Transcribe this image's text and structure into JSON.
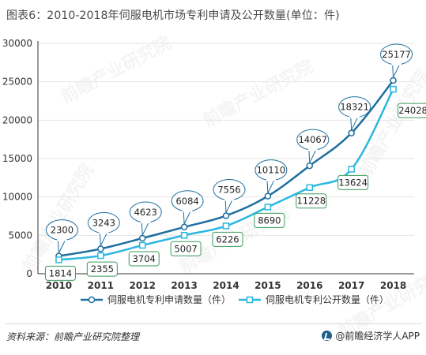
{
  "title": "图表6：2010-2018年伺服电机市场专利申请及公开数量(单位：件)",
  "source": "资料来源：前瞻产业研究院整理",
  "brand": "@前瞻经济学人APP",
  "watermark_text": "前瞻产业研究院",
  "colors": {
    "application": "#1f6f9f",
    "publication": "#2ab7e0",
    "bubble_border": "#1f6f9f",
    "box_border": "#3a9a5e",
    "axis": "#333333",
    "grid": "#e6e6e6"
  },
  "chart_data": {
    "type": "line",
    "categories": [
      "2010",
      "2011",
      "2012",
      "2013",
      "2014",
      "2015",
      "2016",
      "2017",
      "2018"
    ],
    "ylim": [
      0,
      30000
    ],
    "yticks": [
      "0",
      "5000",
      "10000",
      "15000",
      "20000",
      "25000",
      "30000"
    ],
    "ytick_values": [
      0,
      5000,
      10000,
      15000,
      20000,
      25000,
      30000
    ],
    "series": [
      {
        "name": "伺服电机专利申请数量（件）",
        "values": [
          2300,
          3243,
          4623,
          6084,
          7556,
          10110,
          14067,
          18321,
          25177
        ],
        "marker": "circle",
        "label_style": "bubble"
      },
      {
        "name": "伺服电机专利公开数量（件）",
        "values": [
          1814,
          2355,
          3704,
          5007,
          6226,
          8690,
          11228,
          13624,
          24028
        ],
        "marker": "square",
        "label_style": "box"
      }
    ],
    "legend": "bottom"
  }
}
